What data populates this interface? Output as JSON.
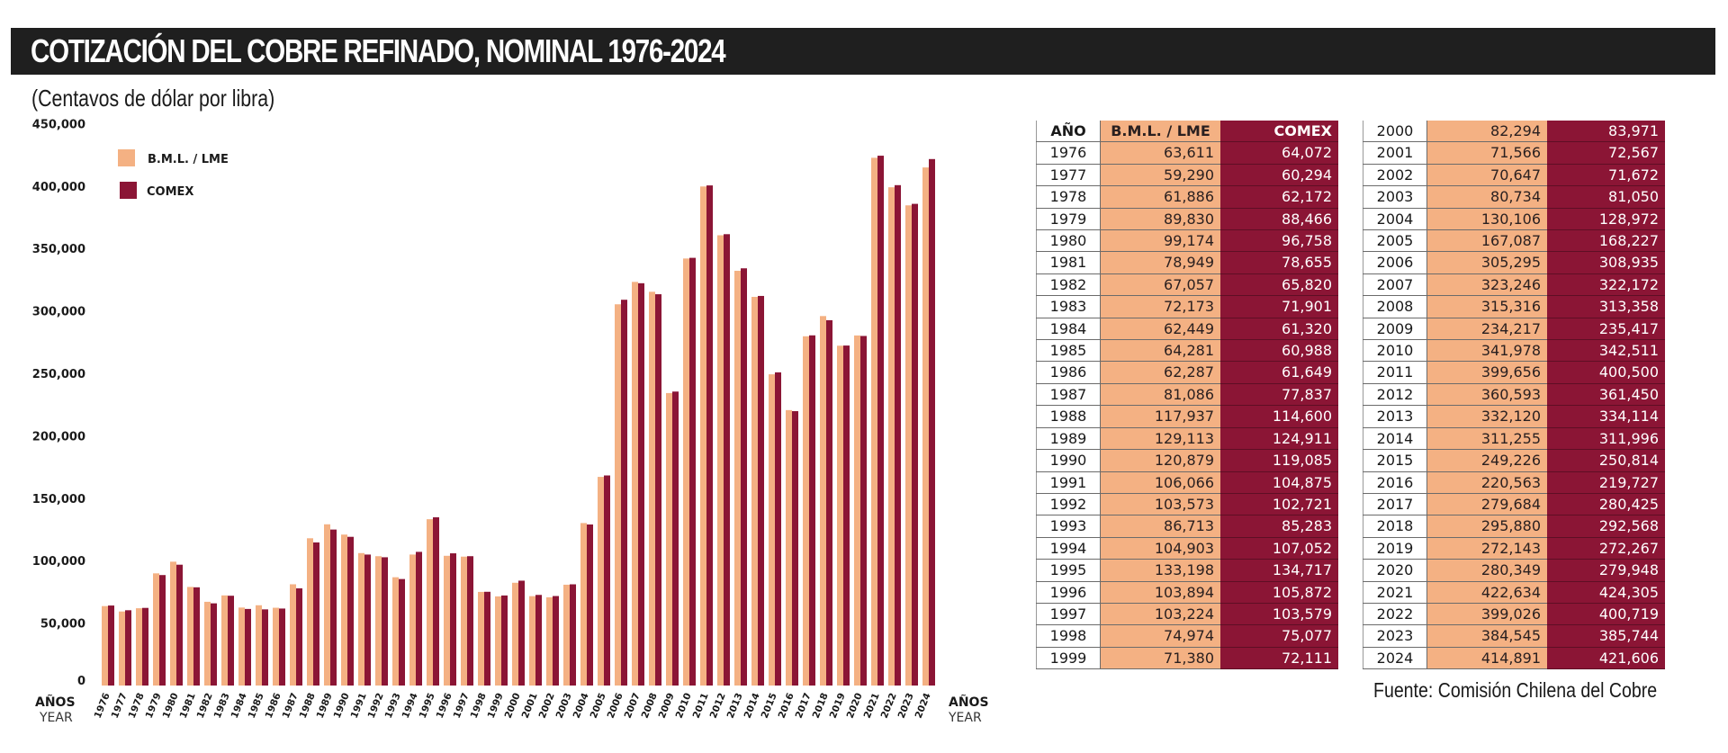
{
  "header": {
    "title": "COTIZACIÓN DEL COBRE REFINADO, NOMINAL 1976-2024",
    "subtitle": "(Centavos de dólar por libra)"
  },
  "colors": {
    "lme": "#F4B183",
    "comex": "#8B1535",
    "title_bg": "#1f1f1f"
  },
  "chart_data": {
    "type": "bar",
    "title": "COTIZACIÓN DEL COBRE REFINADO, NOMINAL 1976-2024",
    "subtitle": "(Centavos de dólar por libra)",
    "xlabel": "AÑOS",
    "xlabel_secondary": "YEAR",
    "ylabel": "",
    "ylim": [
      0,
      450000
    ],
    "yticks": [
      0,
      50000,
      100000,
      150000,
      200000,
      250000,
      300000,
      350000,
      400000,
      450000
    ],
    "ytick_labels": [
      "0",
      "50,000",
      "100,000",
      "150,000",
      "200,000",
      "250,000",
      "300,000",
      "350,000",
      "400,000",
      "450,000"
    ],
    "grid": false,
    "legend_position": "top-left",
    "categories": [
      "1976",
      "1977",
      "1978",
      "1979",
      "1980",
      "1981",
      "1982",
      "1983",
      "1984",
      "1985",
      "1986",
      "1987",
      "1988",
      "1989",
      "1990",
      "1991",
      "1992",
      "1993",
      "1994",
      "1995",
      "1996",
      "1997",
      "1998",
      "1999",
      "2000",
      "2001",
      "2002",
      "2003",
      "2004",
      "2005",
      "2006",
      "2007",
      "2008",
      "2009",
      "2010",
      "2011",
      "2012",
      "2013",
      "2014",
      "2015",
      "2016",
      "2017",
      "2018",
      "2019",
      "2020",
      "2021",
      "2022",
      "2023",
      "2024"
    ],
    "series": [
      {
        "name": "B.M.L. / LME",
        "color": "#F4B183",
        "values": [
          63611,
          59290,
          61886,
          89830,
          99174,
          78949,
          67057,
          72173,
          62449,
          64281,
          62287,
          81086,
          117937,
          129113,
          120879,
          106066,
          103573,
          86713,
          104903,
          133198,
          103894,
          103224,
          74974,
          71380,
          82294,
          71566,
          70647,
          80734,
          130106,
          167087,
          305295,
          323246,
          315316,
          234217,
          341978,
          399656,
          360593,
          332120,
          311255,
          249226,
          220563,
          279684,
          295880,
          272143,
          280349,
          422634,
          399026,
          384545,
          414891
        ]
      },
      {
        "name": "COMEX",
        "color": "#8B1535",
        "values": [
          64072,
          60294,
          62172,
          88466,
          96758,
          78655,
          65820,
          71901,
          61320,
          60988,
          61649,
          77837,
          114600,
          124911,
          119085,
          104875,
          102721,
          85283,
          107052,
          134717,
          105872,
          103579,
          75077,
          72111,
          83971,
          72567,
          71672,
          81050,
          128972,
          168227,
          308935,
          322172,
          313358,
          235417,
          342511,
          400500,
          361450,
          334114,
          311996,
          250814,
          219727,
          280425,
          292568,
          272267,
          279948,
          424305,
          400719,
          385744,
          421606
        ]
      }
    ]
  },
  "tables": {
    "headers": {
      "year": "AÑO",
      "lme": "B.M.L. / LME",
      "comex": "COMEX"
    },
    "table1": [
      {
        "year": "1976",
        "lme": "63,611",
        "comex": "64,072"
      },
      {
        "year": "1977",
        "lme": "59,290",
        "comex": "60,294"
      },
      {
        "year": "1978",
        "lme": "61,886",
        "comex": "62,172"
      },
      {
        "year": "1979",
        "lme": "89,830",
        "comex": "88,466"
      },
      {
        "year": "1980",
        "lme": "99,174",
        "comex": "96,758"
      },
      {
        "year": "1981",
        "lme": "78,949",
        "comex": "78,655"
      },
      {
        "year": "1982",
        "lme": "67,057",
        "comex": "65,820"
      },
      {
        "year": "1983",
        "lme": "72,173",
        "comex": "71,901"
      },
      {
        "year": "1984",
        "lme": "62,449",
        "comex": "61,320"
      },
      {
        "year": "1985",
        "lme": "64,281",
        "comex": "60,988"
      },
      {
        "year": "1986",
        "lme": "62,287",
        "comex": "61,649"
      },
      {
        "year": "1987",
        "lme": "81,086",
        "comex": "77,837"
      },
      {
        "year": "1988",
        "lme": "117,937",
        "comex": "114,600"
      },
      {
        "year": "1989",
        "lme": "129,113",
        "comex": "124,911"
      },
      {
        "year": "1990",
        "lme": "120,879",
        "comex": "119,085"
      },
      {
        "year": "1991",
        "lme": "106,066",
        "comex": "104,875"
      },
      {
        "year": "1992",
        "lme": "103,573",
        "comex": "102,721"
      },
      {
        "year": "1993",
        "lme": "86,713",
        "comex": "85,283"
      },
      {
        "year": "1994",
        "lme": "104,903",
        "comex": "107,052"
      },
      {
        "year": "1995",
        "lme": "133,198",
        "comex": "134,717"
      },
      {
        "year": "1996",
        "lme": "103,894",
        "comex": "105,872"
      },
      {
        "year": "1997",
        "lme": "103,224",
        "comex": "103,579"
      },
      {
        "year": "1998",
        "lme": "74,974",
        "comex": "75,077"
      },
      {
        "year": "1999",
        "lme": "71,380",
        "comex": "72,111"
      }
    ],
    "table2": [
      {
        "year": "2000",
        "lme": "82,294",
        "comex": "83,971"
      },
      {
        "year": "2001",
        "lme": "71,566",
        "comex": "72,567"
      },
      {
        "year": "2002",
        "lme": "70,647",
        "comex": "71,672"
      },
      {
        "year": "2003",
        "lme": "80,734",
        "comex": "81,050"
      },
      {
        "year": "2004",
        "lme": "130,106",
        "comex": "128,972"
      },
      {
        "year": "2005",
        "lme": "167,087",
        "comex": "168,227"
      },
      {
        "year": "2006",
        "lme": "305,295",
        "comex": "308,935"
      },
      {
        "year": "2007",
        "lme": "323,246",
        "comex": "322,172"
      },
      {
        "year": "2008",
        "lme": "315,316",
        "comex": "313,358"
      },
      {
        "year": "2009",
        "lme": "234,217",
        "comex": "235,417"
      },
      {
        "year": "2010",
        "lme": "341,978",
        "comex": "342,511"
      },
      {
        "year": "2011",
        "lme": "399,656",
        "comex": "400,500"
      },
      {
        "year": "2012",
        "lme": "360,593",
        "comex": "361,450"
      },
      {
        "year": "2013",
        "lme": "332,120",
        "comex": "334,114"
      },
      {
        "year": "2014",
        "lme": "311,255",
        "comex": "311,996"
      },
      {
        "year": "2015",
        "lme": "249,226",
        "comex": "250,814"
      },
      {
        "year": "2016",
        "lme": "220,563",
        "comex": "219,727"
      },
      {
        "year": "2017",
        "lme": "279,684",
        "comex": "280,425"
      },
      {
        "year": "2018",
        "lme": "295,880",
        "comex": "292,568"
      },
      {
        "year": "2019",
        "lme": "272,143",
        "comex": "272,267"
      },
      {
        "year": "2020",
        "lme": "280,349",
        "comex": "279,948"
      },
      {
        "year": "2021",
        "lme": "422,634",
        "comex": "424,305"
      },
      {
        "year": "2022",
        "lme": "399,026",
        "comex": "400,719"
      },
      {
        "year": "2023",
        "lme": "384,545",
        "comex": "385,744"
      },
      {
        "year": "2024",
        "lme": "414,891",
        "comex": "421,606"
      }
    ]
  },
  "footer": {
    "source": "Fuente: Comisión Chilena del Cobre"
  }
}
